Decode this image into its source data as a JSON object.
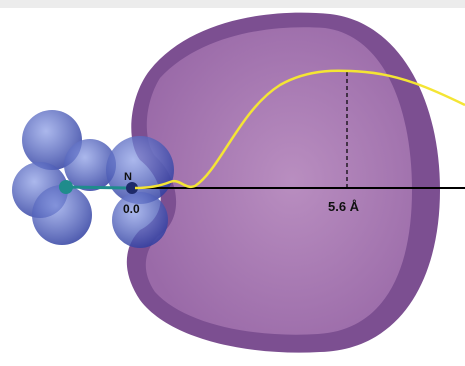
{
  "labels": {
    "atom": "N",
    "origin": "0.0",
    "distance": "5.6 Å"
  }
}
